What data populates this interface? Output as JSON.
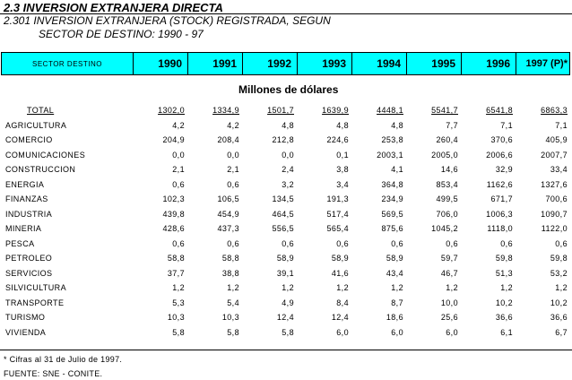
{
  "title": {
    "main": "2.3 INVERSION EXTRANJERA DIRECTA",
    "sub1": "2.301 INVERSION EXTRANJERA (STOCK) REGISTRADA, SEGUN",
    "sub2": "SECTOR DE DESTINO: 1990 - 97"
  },
  "header": {
    "first": "SECTOR DESTINO",
    "years": [
      "1990",
      "1991",
      "1992",
      "1993",
      "1994",
      "1995",
      "1996",
      "1997 (P)*"
    ]
  },
  "units": "Millones de dólares",
  "rows": [
    {
      "label": "TOTAL",
      "values": [
        "1302,0",
        "1334,9",
        "1501,7",
        "1639,9",
        "4448,1",
        "5541,7",
        "6541,8",
        "6863,3"
      ]
    },
    {
      "label": "AGRICULTURA",
      "values": [
        "4,2",
        "4,2",
        "4,8",
        "4,8",
        "4,8",
        "7,7",
        "7,1",
        "7,1"
      ]
    },
    {
      "label": "COMERCIO",
      "values": [
        "204,9",
        "208,4",
        "212,8",
        "224,6",
        "253,8",
        "260,4",
        "370,6",
        "405,9"
      ]
    },
    {
      "label": "COMUNICACIONES",
      "values": [
        "0,0",
        "0,0",
        "0,0",
        "0,1",
        "2003,1",
        "2005,0",
        "2006,6",
        "2007,7"
      ]
    },
    {
      "label": "CONSTRUCCION",
      "values": [
        "2,1",
        "2,1",
        "2,4",
        "3,8",
        "4,1",
        "14,6",
        "32,9",
        "33,4"
      ]
    },
    {
      "label": "ENERGIA",
      "values": [
        "0,6",
        "0,6",
        "3,2",
        "3,4",
        "364,8",
        "853,4",
        "1162,6",
        "1327,6"
      ]
    },
    {
      "label": "FINANZAS",
      "values": [
        "102,3",
        "106,5",
        "134,5",
        "191,3",
        "234,9",
        "499,5",
        "671,7",
        "700,6"
      ]
    },
    {
      "label": "INDUSTRIA",
      "values": [
        "439,8",
        "454,9",
        "464,5",
        "517,4",
        "569,5",
        "706,0",
        "1006,3",
        "1090,7"
      ]
    },
    {
      "label": "MINERIA",
      "values": [
        "428,6",
        "437,3",
        "556,5",
        "565,4",
        "875,6",
        "1045,2",
        "1118,0",
        "1122,0"
      ]
    },
    {
      "label": "PESCA",
      "values": [
        "0,6",
        "0,6",
        "0,6",
        "0,6",
        "0,6",
        "0,6",
        "0,6",
        "0,6"
      ]
    },
    {
      "label": "PETROLEO",
      "values": [
        "58,8",
        "58,8",
        "58,9",
        "58,9",
        "58,9",
        "59,7",
        "59,8",
        "59,8"
      ]
    },
    {
      "label": "SERVICIOS",
      "values": [
        "37,7",
        "38,8",
        "39,1",
        "41,6",
        "43,4",
        "46,7",
        "51,3",
        "53,2"
      ]
    },
    {
      "label": "SILVICULTURA",
      "values": [
        "1,2",
        "1,2",
        "1,2",
        "1,2",
        "1,2",
        "1,2",
        "1,2",
        "1,2"
      ]
    },
    {
      "label": "TRANSPORTE",
      "values": [
        "5,3",
        "5,4",
        "4,9",
        "8,4",
        "8,7",
        "10,0",
        "10,2",
        "10,2"
      ]
    },
    {
      "label": "TURISMO",
      "values": [
        "10,3",
        "10,3",
        "12,4",
        "12,4",
        "18,6",
        "25,6",
        "36,6",
        "36,6"
      ]
    },
    {
      "label": "VIVIENDA",
      "values": [
        "5,8",
        "5,8",
        "5,8",
        "6,0",
        "6,0",
        "6,0",
        "6,1",
        "6,7"
      ]
    }
  ],
  "footnote": "* Cifras al 31 de Julio  de 1997.",
  "source": "FUENTE: SNE - CONITE."
}
